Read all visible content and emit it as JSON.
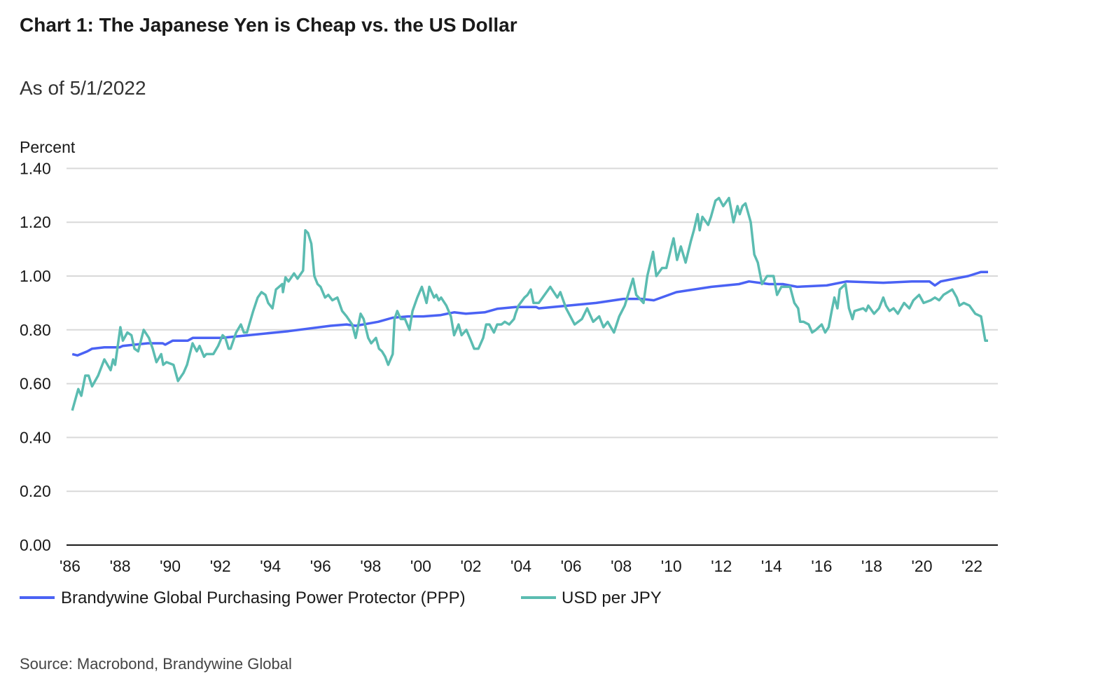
{
  "chart_data": {
    "type": "line",
    "title": "Chart 1: The Japanese Yen is Cheap vs. the US Dollar",
    "subtitle": "As of 5/1/2022",
    "ylabel": "Percent",
    "source": "Source: Macrobond, Brandywine Global",
    "ylim": [
      0,
      1.4
    ],
    "xlim": [
      1986,
      2022.9
    ],
    "yticks": [
      "0.00",
      "0.20",
      "0.40",
      "0.60",
      "0.80",
      "1.00",
      "1.20",
      "1.40"
    ],
    "ytick_values": [
      0,
      0.2,
      0.4,
      0.6,
      0.8,
      1.0,
      1.2,
      1.4
    ],
    "xticks": [
      "'86",
      "'88",
      "'90",
      "'92",
      "'94",
      "'96",
      "'98",
      "'00",
      "'02",
      "'04",
      "'06",
      "'08",
      "'10",
      "'12",
      "'14",
      "'16",
      "'18",
      "'20",
      "'22"
    ],
    "xtick_values": [
      1986,
      1988,
      1990,
      1992,
      1994,
      1996,
      1998,
      2000,
      2002,
      2004,
      2006,
      2008,
      2010,
      2012,
      2014,
      2016,
      2018,
      2020,
      2022
    ],
    "grid": true,
    "legend_position": "bottom-left",
    "series": [
      {
        "name": "Brandywine Global Purchasing Power Protector (PPP)",
        "color": "#4a62f4",
        "points": [
          [
            1986.09,
            0.71
          ],
          [
            1986.3,
            0.705
          ],
          [
            1986.69,
            0.72
          ],
          [
            1986.88,
            0.73
          ],
          [
            1987.37,
            0.735
          ],
          [
            1987.98,
            0.735
          ],
          [
            1988.1,
            0.74
          ],
          [
            1989.1,
            0.75
          ],
          [
            1989.7,
            0.75
          ],
          [
            1989.8,
            0.745
          ],
          [
            1990.1,
            0.76
          ],
          [
            1990.7,
            0.76
          ],
          [
            1990.9,
            0.77
          ],
          [
            1992.05,
            0.77
          ],
          [
            1992.8,
            0.777
          ],
          [
            1994.72,
            0.795
          ],
          [
            1996.4,
            0.815
          ],
          [
            1997.04,
            0.82
          ],
          [
            1997.4,
            0.815
          ],
          [
            1998.3,
            0.83
          ],
          [
            1998.88,
            0.845
          ],
          [
            1999.5,
            0.85
          ],
          [
            2000.1,
            0.85
          ],
          [
            2000.8,
            0.855
          ],
          [
            2001.05,
            0.86
          ],
          [
            2001.33,
            0.865
          ],
          [
            2001.8,
            0.86
          ],
          [
            2002.55,
            0.865
          ],
          [
            2003.05,
            0.878
          ],
          [
            2003.78,
            0.885
          ],
          [
            2004.6,
            0.885
          ],
          [
            2004.71,
            0.88
          ],
          [
            2005.86,
            0.89
          ],
          [
            2007.0,
            0.9
          ],
          [
            2008.1,
            0.915
          ],
          [
            2008.8,
            0.915
          ],
          [
            2009.3,
            0.91
          ],
          [
            2010.2,
            0.94
          ],
          [
            2011.6,
            0.96
          ],
          [
            2012.7,
            0.97
          ],
          [
            2013.1,
            0.98
          ],
          [
            2013.9,
            0.97
          ],
          [
            2014.45,
            0.97
          ],
          [
            2015.02,
            0.96
          ],
          [
            2016.2,
            0.965
          ],
          [
            2017.0,
            0.98
          ],
          [
            2018.46,
            0.975
          ],
          [
            2019.6,
            0.98
          ],
          [
            2020.3,
            0.98
          ],
          [
            2020.52,
            0.965
          ],
          [
            2020.75,
            0.98
          ],
          [
            2021.3,
            0.99
          ],
          [
            2021.85,
            1.0
          ],
          [
            2022.36,
            1.015
          ],
          [
            2022.64,
            1.015
          ]
        ]
      },
      {
        "name": "USD per JPY",
        "color": "#5bbcb1",
        "points": [
          [
            1986.09,
            0.5
          ],
          [
            1986.21,
            0.54
          ],
          [
            1986.33,
            0.58
          ],
          [
            1986.45,
            0.555
          ],
          [
            1986.61,
            0.63
          ],
          [
            1986.74,
            0.63
          ],
          [
            1986.88,
            0.59
          ],
          [
            1987.12,
            0.63
          ],
          [
            1987.37,
            0.69
          ],
          [
            1987.62,
            0.65
          ],
          [
            1987.72,
            0.69
          ],
          [
            1987.8,
            0.67
          ],
          [
            1988.01,
            0.81
          ],
          [
            1988.11,
            0.76
          ],
          [
            1988.29,
            0.79
          ],
          [
            1988.45,
            0.78
          ],
          [
            1988.57,
            0.73
          ],
          [
            1988.72,
            0.72
          ],
          [
            1988.94,
            0.8
          ],
          [
            1989.15,
            0.77
          ],
          [
            1989.3,
            0.73
          ],
          [
            1989.45,
            0.68
          ],
          [
            1989.64,
            0.71
          ],
          [
            1989.72,
            0.67
          ],
          [
            1989.85,
            0.68
          ],
          [
            1990.13,
            0.67
          ],
          [
            1990.31,
            0.61
          ],
          [
            1990.53,
            0.64
          ],
          [
            1990.67,
            0.67
          ],
          [
            1990.89,
            0.75
          ],
          [
            1991.06,
            0.72
          ],
          [
            1991.17,
            0.74
          ],
          [
            1991.35,
            0.7
          ],
          [
            1991.44,
            0.71
          ],
          [
            1991.72,
            0.71
          ],
          [
            1991.91,
            0.74
          ],
          [
            1992.09,
            0.78
          ],
          [
            1992.2,
            0.77
          ],
          [
            1992.33,
            0.73
          ],
          [
            1992.41,
            0.73
          ],
          [
            1992.63,
            0.79
          ],
          [
            1992.82,
            0.82
          ],
          [
            1992.94,
            0.79
          ],
          [
            1993.06,
            0.79
          ],
          [
            1993.31,
            0.87
          ],
          [
            1993.49,
            0.92
          ],
          [
            1993.64,
            0.94
          ],
          [
            1993.8,
            0.93
          ],
          [
            1993.91,
            0.9
          ],
          [
            1994.08,
            0.88
          ],
          [
            1994.22,
            0.95
          ],
          [
            1994.47,
            0.97
          ],
          [
            1994.5,
            0.94
          ],
          [
            1994.6,
            0.995
          ],
          [
            1994.72,
            0.98
          ],
          [
            1994.94,
            1.01
          ],
          [
            1995.08,
            0.99
          ],
          [
            1995.3,
            1.02
          ],
          [
            1995.39,
            1.17
          ],
          [
            1995.5,
            1.16
          ],
          [
            1995.63,
            1.12
          ],
          [
            1995.75,
            1.0
          ],
          [
            1995.88,
            0.97
          ],
          [
            1996.0,
            0.96
          ],
          [
            1996.18,
            0.92
          ],
          [
            1996.31,
            0.93
          ],
          [
            1996.47,
            0.91
          ],
          [
            1996.67,
            0.92
          ],
          [
            1996.86,
            0.87
          ],
          [
            1997.04,
            0.85
          ],
          [
            1997.26,
            0.82
          ],
          [
            1997.4,
            0.77
          ],
          [
            1997.6,
            0.86
          ],
          [
            1997.72,
            0.84
          ],
          [
            1997.9,
            0.77
          ],
          [
            1998.02,
            0.75
          ],
          [
            1998.21,
            0.77
          ],
          [
            1998.33,
            0.73
          ],
          [
            1998.45,
            0.72
          ],
          [
            1998.58,
            0.7
          ],
          [
            1998.7,
            0.67
          ],
          [
            1998.88,
            0.71
          ],
          [
            1998.95,
            0.84
          ],
          [
            1999.06,
            0.87
          ],
          [
            1999.2,
            0.84
          ],
          [
            1999.37,
            0.84
          ],
          [
            1999.55,
            0.8
          ],
          [
            1999.67,
            0.87
          ],
          [
            1999.86,
            0.92
          ],
          [
            2000.04,
            0.96
          ],
          [
            2000.23,
            0.9
          ],
          [
            2000.34,
            0.96
          ],
          [
            2000.53,
            0.92
          ],
          [
            2000.62,
            0.93
          ],
          [
            2000.72,
            0.91
          ],
          [
            2000.81,
            0.92
          ],
          [
            2001.02,
            0.89
          ],
          [
            2001.2,
            0.85
          ],
          [
            2001.33,
            0.78
          ],
          [
            2001.51,
            0.82
          ],
          [
            2001.63,
            0.78
          ],
          [
            2001.82,
            0.8
          ],
          [
            2002.0,
            0.76
          ],
          [
            2002.13,
            0.73
          ],
          [
            2002.3,
            0.73
          ],
          [
            2002.49,
            0.77
          ],
          [
            2002.61,
            0.82
          ],
          [
            2002.74,
            0.82
          ],
          [
            2002.92,
            0.79
          ],
          [
            2003.05,
            0.82
          ],
          [
            2003.22,
            0.82
          ],
          [
            2003.35,
            0.83
          ],
          [
            2003.53,
            0.82
          ],
          [
            2003.72,
            0.84
          ],
          [
            2003.78,
            0.86
          ],
          [
            2003.9,
            0.89
          ],
          [
            2004.14,
            0.92
          ],
          [
            2004.26,
            0.93
          ],
          [
            2004.39,
            0.95
          ],
          [
            2004.5,
            0.9
          ],
          [
            2004.71,
            0.9
          ],
          [
            2005.17,
            0.96
          ],
          [
            2005.45,
            0.92
          ],
          [
            2005.57,
            0.94
          ],
          [
            2005.8,
            0.88
          ],
          [
            2006.14,
            0.82
          ],
          [
            2006.43,
            0.84
          ],
          [
            2006.64,
            0.88
          ],
          [
            2006.88,
            0.83
          ],
          [
            2007.12,
            0.85
          ],
          [
            2007.29,
            0.81
          ],
          [
            2007.46,
            0.83
          ],
          [
            2007.71,
            0.79
          ],
          [
            2007.92,
            0.85
          ],
          [
            2008.14,
            0.89
          ],
          [
            2008.47,
            0.99
          ],
          [
            2008.6,
            0.93
          ],
          [
            2008.89,
            0.9
          ],
          [
            2009.04,
            1.0
          ],
          [
            2009.27,
            1.09
          ],
          [
            2009.4,
            1.0
          ],
          [
            2009.63,
            1.03
          ],
          [
            2009.8,
            1.03
          ],
          [
            2009.98,
            1.1
          ],
          [
            2010.09,
            1.14
          ],
          [
            2010.23,
            1.06
          ],
          [
            2010.38,
            1.11
          ],
          [
            2010.57,
            1.05
          ],
          [
            2010.78,
            1.13
          ],
          [
            2010.9,
            1.17
          ],
          [
            2011.05,
            1.23
          ],
          [
            2011.13,
            1.17
          ],
          [
            2011.24,
            1.22
          ],
          [
            2011.47,
            1.19
          ],
          [
            2011.58,
            1.22
          ],
          [
            2011.76,
            1.28
          ],
          [
            2011.9,
            1.29
          ],
          [
            2012.07,
            1.26
          ],
          [
            2012.3,
            1.29
          ],
          [
            2012.48,
            1.2
          ],
          [
            2012.64,
            1.26
          ],
          [
            2012.73,
            1.23
          ],
          [
            2012.84,
            1.26
          ],
          [
            2012.96,
            1.27
          ],
          [
            2013.17,
            1.2
          ],
          [
            2013.31,
            1.08
          ],
          [
            2013.45,
            1.05
          ],
          [
            2013.62,
            0.97
          ],
          [
            2013.82,
            1.0
          ],
          [
            2014.08,
            1.0
          ],
          [
            2014.22,
            0.93
          ],
          [
            2014.39,
            0.96
          ],
          [
            2014.74,
            0.96
          ],
          [
            2014.91,
            0.9
          ],
          [
            2015.06,
            0.88
          ],
          [
            2015.14,
            0.83
          ],
          [
            2015.28,
            0.83
          ],
          [
            2015.48,
            0.82
          ],
          [
            2015.62,
            0.79
          ],
          [
            2015.77,
            0.8
          ],
          [
            2016.0,
            0.82
          ],
          [
            2016.14,
            0.79
          ],
          [
            2016.28,
            0.81
          ],
          [
            2016.4,
            0.87
          ],
          [
            2016.51,
            0.92
          ],
          [
            2016.63,
            0.88
          ],
          [
            2016.72,
            0.95
          ],
          [
            2016.95,
            0.97
          ],
          [
            2017.09,
            0.88
          ],
          [
            2017.23,
            0.84
          ],
          [
            2017.31,
            0.87
          ],
          [
            2017.66,
            0.88
          ],
          [
            2017.77,
            0.87
          ],
          [
            2017.86,
            0.89
          ],
          [
            2018.09,
            0.86
          ],
          [
            2018.29,
            0.88
          ],
          [
            2018.46,
            0.92
          ],
          [
            2018.57,
            0.89
          ],
          [
            2018.71,
            0.87
          ],
          [
            2018.87,
            0.88
          ],
          [
            2019.04,
            0.86
          ],
          [
            2019.29,
            0.9
          ],
          [
            2019.5,
            0.88
          ],
          [
            2019.66,
            0.91
          ],
          [
            2019.89,
            0.93
          ],
          [
            2020.07,
            0.9
          ],
          [
            2020.35,
            0.91
          ],
          [
            2020.52,
            0.92
          ],
          [
            2020.69,
            0.91
          ],
          [
            2020.86,
            0.93
          ],
          [
            2021.04,
            0.94
          ],
          [
            2021.21,
            0.95
          ],
          [
            2021.39,
            0.92
          ],
          [
            2021.5,
            0.89
          ],
          [
            2021.67,
            0.9
          ],
          [
            2021.9,
            0.89
          ],
          [
            2022.13,
            0.86
          ],
          [
            2022.36,
            0.85
          ],
          [
            2022.53,
            0.76
          ],
          [
            2022.64,
            0.76
          ]
        ]
      }
    ]
  }
}
